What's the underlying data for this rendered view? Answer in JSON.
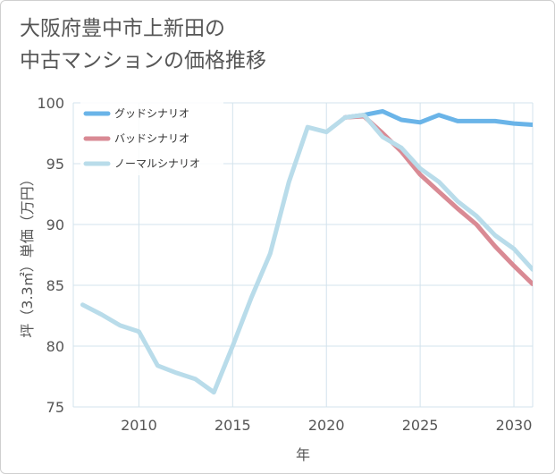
{
  "chart_data": {
    "type": "line",
    "title": "大阪府豊中市上新田の中古マンションの価格推移",
    "title_lines": [
      "大阪府豊中市上新田の",
      "中古マンションの価格推移"
    ],
    "xlabel": "年",
    "ylabel": "坪（3.3㎡）単価（万円）",
    "xlim": [
      2006.5,
      2031
    ],
    "ylim": [
      75,
      100
    ],
    "xticks": [
      2010,
      2015,
      2020,
      2025,
      2030
    ],
    "yticks": [
      75,
      80,
      85,
      90,
      95,
      100
    ],
    "grid": true,
    "legend_position": "top-left",
    "series": [
      {
        "name": "グッドシナリオ",
        "color": "#6ab4e8",
        "points": [
          [
            2021,
            98.8
          ],
          [
            2022,
            99.0
          ],
          [
            2023,
            99.3
          ],
          [
            2024,
            98.6
          ],
          [
            2025,
            98.4
          ],
          [
            2026,
            99.0
          ],
          [
            2027,
            98.5
          ],
          [
            2028,
            98.5
          ],
          [
            2029,
            98.5
          ],
          [
            2030,
            98.3
          ],
          [
            2031,
            98.2
          ]
        ]
      },
      {
        "name": "バッドシナリオ",
        "color": "#d98a94",
        "points": [
          [
            2021,
            98.8
          ],
          [
            2022,
            98.9
          ],
          [
            2023,
            97.5
          ],
          [
            2024,
            96.0
          ],
          [
            2025,
            94.1
          ],
          [
            2026,
            92.7
          ],
          [
            2027,
            91.3
          ],
          [
            2028,
            90.0
          ],
          [
            2029,
            88.2
          ],
          [
            2030,
            86.6
          ],
          [
            2031,
            85.1
          ]
        ]
      },
      {
        "name": "ノーマルシナリオ",
        "color": "#b9dcea",
        "points": [
          [
            2007,
            83.4
          ],
          [
            2008,
            82.6
          ],
          [
            2009,
            81.7
          ],
          [
            2010,
            81.2
          ],
          [
            2011,
            78.4
          ],
          [
            2012,
            77.8
          ],
          [
            2013,
            77.3
          ],
          [
            2014,
            76.2
          ],
          [
            2015,
            80.0
          ],
          [
            2016,
            84.0
          ],
          [
            2017,
            87.6
          ],
          [
            2018,
            93.5
          ],
          [
            2019,
            98.0
          ],
          [
            2020,
            97.6
          ],
          [
            2021,
            98.8
          ],
          [
            2022,
            99.0
          ],
          [
            2023,
            97.2
          ],
          [
            2024,
            96.3
          ],
          [
            2025,
            94.6
          ],
          [
            2026,
            93.5
          ],
          [
            2027,
            91.9
          ],
          [
            2028,
            90.7
          ],
          [
            2029,
            89.1
          ],
          [
            2030,
            88.0
          ],
          [
            2031,
            86.3
          ]
        ]
      }
    ]
  }
}
